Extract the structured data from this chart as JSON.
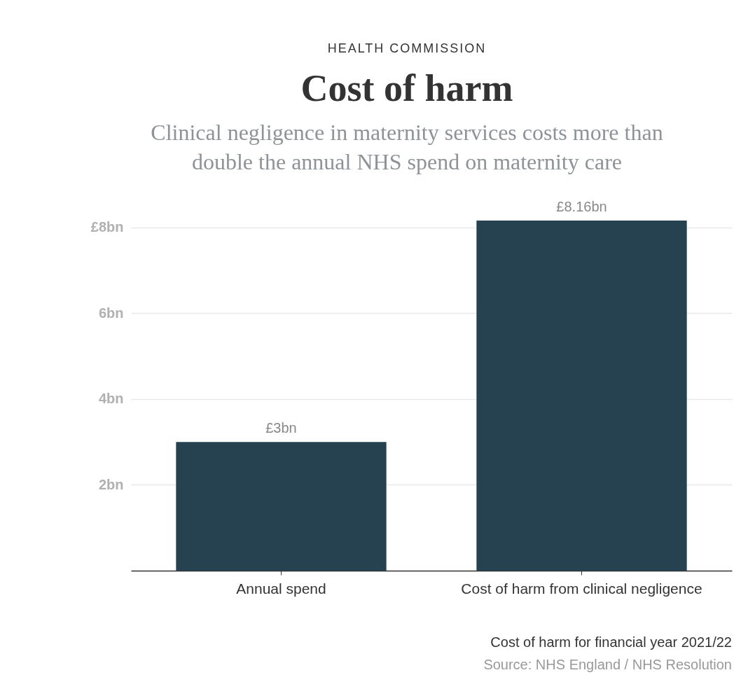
{
  "chart_data": {
    "type": "bar",
    "title": "Cost of harm",
    "subtitle": "Clinical negligence in maternity services costs more than double the annual NHS spend on maternity care",
    "categories": [
      "Annual spend",
      "Cost of harm from clinical negligence"
    ],
    "values": [
      3,
      8.16
    ],
    "color": "#26414f",
    "value_labels": [
      "£3bn",
      "£8.16bn"
    ],
    "ylim": [
      0,
      8.16
    ],
    "yticks": [
      {
        "value": 2,
        "label": "2bn"
      },
      {
        "value": 4,
        "label": "4bn"
      },
      {
        "value": 6,
        "label": "6bn"
      },
      {
        "value": 8,
        "label": "£8bn"
      }
    ],
    "grid": "y",
    "annotations": [
      "HEALTH COMMISSION",
      "Cost of harm for financial year 2021/22",
      "Source: NHS England / NHS Resolution"
    ]
  }
}
